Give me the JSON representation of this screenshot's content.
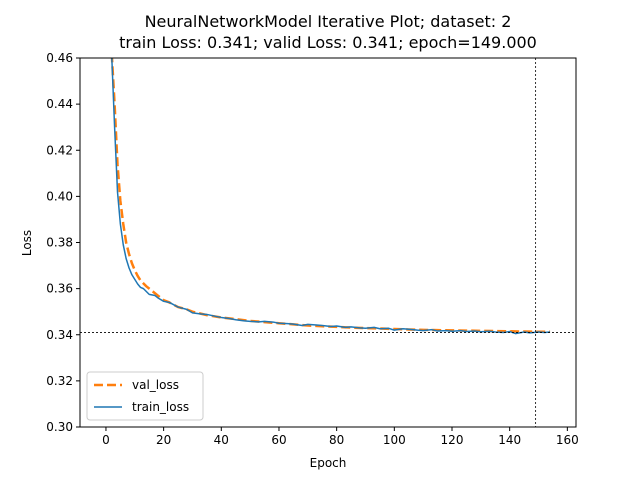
{
  "chart_data": {
    "type": "line",
    "title_line1": "NeuralNetworkModel Iterative Plot; dataset: 2",
    "title_line2": "train Loss: 0.341; valid Loss: 0.341; epoch=149.000",
    "xlabel": "Epoch",
    "ylabel": "Loss",
    "xlim": [
      -9,
      163
    ],
    "ylim": [
      0.3,
      0.46
    ],
    "xticks": [
      0,
      20,
      40,
      60,
      80,
      100,
      120,
      140,
      160
    ],
    "yticks": [
      0.3,
      0.32,
      0.34,
      0.36,
      0.38,
      0.4,
      0.42,
      0.44,
      0.46
    ],
    "xtick_labels": [
      "0",
      "20",
      "40",
      "60",
      "80",
      "100",
      "120",
      "140",
      "160"
    ],
    "ytick_labels": [
      "0.30",
      "0.32",
      "0.34",
      "0.36",
      "0.38",
      "0.40",
      "0.42",
      "0.44",
      "0.46"
    ],
    "reference_lines": {
      "vertical_x": 149,
      "horizontal_y": 0.341
    },
    "legend_position": "lower left",
    "series": [
      {
        "name": "val_loss",
        "color": "#ff7f0e",
        "style": "dashed",
        "x": [
          2,
          3,
          4,
          5,
          6,
          7,
          8,
          9,
          10,
          11,
          12,
          14,
          16,
          18,
          20,
          22,
          25,
          28,
          30,
          35,
          40,
          45,
          50,
          55,
          60,
          65,
          70,
          75,
          80,
          85,
          90,
          95,
          100,
          105,
          110,
          115,
          120,
          125,
          130,
          135,
          140,
          145,
          150,
          154
        ],
        "y": [
          0.462,
          0.44,
          0.414,
          0.398,
          0.388,
          0.38,
          0.375,
          0.371,
          0.368,
          0.3655,
          0.3635,
          0.361,
          0.359,
          0.357,
          0.355,
          0.354,
          0.352,
          0.351,
          0.35,
          0.3485,
          0.3475,
          0.3468,
          0.346,
          0.3455,
          0.345,
          0.3445,
          0.344,
          0.3437,
          0.3434,
          0.3431,
          0.3429,
          0.3427,
          0.3425,
          0.3423,
          0.3421,
          0.342,
          0.3419,
          0.3418,
          0.3417,
          0.3416,
          0.3415,
          0.3414,
          0.3413,
          0.3413
        ]
      },
      {
        "name": "train_loss",
        "color": "#1f77b4",
        "style": "solid",
        "x": [
          2,
          3,
          4,
          5,
          6,
          7,
          8,
          9,
          10,
          11,
          12,
          13,
          15,
          17,
          18,
          20,
          22,
          25,
          28,
          30,
          33,
          35,
          38,
          40,
          43,
          45,
          48,
          50,
          53,
          55,
          58,
          60,
          63,
          65,
          68,
          70,
          73,
          75,
          78,
          80,
          83,
          85,
          88,
          90,
          93,
          95,
          98,
          100,
          103,
          105,
          108,
          110,
          113,
          115,
          118,
          120,
          123,
          125,
          128,
          130,
          133,
          135,
          138,
          140,
          142,
          145,
          147,
          150,
          152,
          154
        ],
        "y": [
          0.461,
          0.43,
          0.402,
          0.388,
          0.379,
          0.373,
          0.369,
          0.366,
          0.364,
          0.362,
          0.3605,
          0.36,
          0.3575,
          0.357,
          0.356,
          0.3545,
          0.354,
          0.352,
          0.351,
          0.3495,
          0.349,
          0.3488,
          0.348,
          0.3475,
          0.347,
          0.3465,
          0.346,
          0.3458,
          0.3456,
          0.3458,
          0.3455,
          0.345,
          0.3448,
          0.3446,
          0.344,
          0.3445,
          0.3442,
          0.344,
          0.3436,
          0.3438,
          0.3432,
          0.3434,
          0.343,
          0.3428,
          0.3432,
          0.3426,
          0.3428,
          0.342,
          0.3426,
          0.3424,
          0.342,
          0.3418,
          0.3422,
          0.3416,
          0.3418,
          0.3415,
          0.3418,
          0.3414,
          0.3416,
          0.3413,
          0.3415,
          0.3412,
          0.341,
          0.3414,
          0.3405,
          0.3412,
          0.3408,
          0.3412,
          0.341,
          0.3412
        ]
      }
    ]
  }
}
